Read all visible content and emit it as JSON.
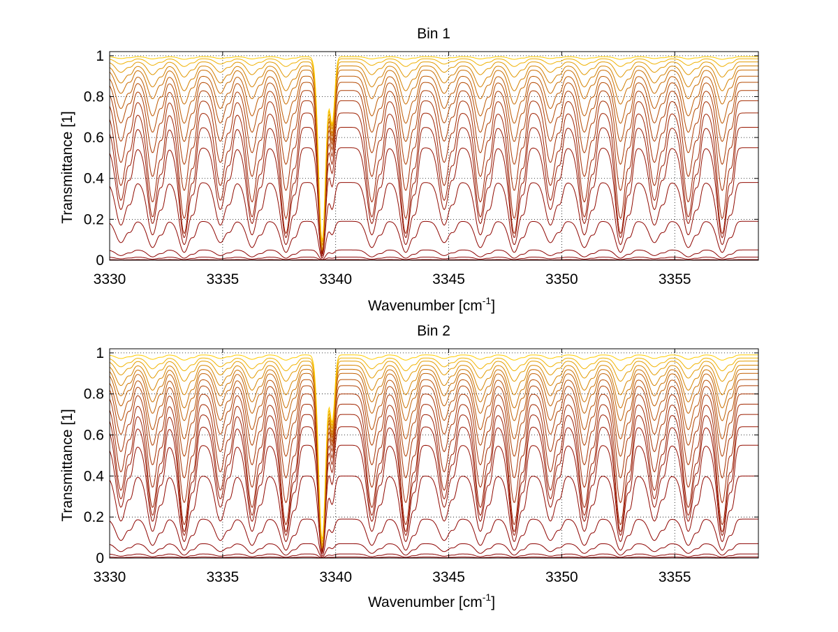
{
  "chart_data": [
    {
      "type": "line",
      "title": "Bin 1",
      "xlabel": "Wavenumber [cm",
      "xlabel_sup": "-1",
      "xlabel_end": "]",
      "ylabel": "Transmittance [1]",
      "xlim": [
        3330,
        3358.7
      ],
      "ylim": [
        0,
        1.02
      ],
      "xticks": [
        3330,
        3335,
        3340,
        3345,
        3350,
        3355
      ],
      "yticks": [
        0,
        0.2,
        0.4,
        0.6,
        0.8,
        1
      ],
      "ytick_labels": [
        "0",
        "0.2",
        "0.4",
        "0.6",
        "0.8",
        "1"
      ],
      "grid": true,
      "line_count": 30,
      "line_color_range": [
        "#8b0000",
        "#ffcc00"
      ],
      "series": [
        {
          "name": "",
          "level": 0.003
        },
        {
          "name": "",
          "level": 0.015
        },
        {
          "name": "",
          "level": 0.05
        },
        {
          "name": "",
          "level": 0.19
        },
        {
          "name": "",
          "level": 0.38
        },
        {
          "name": "",
          "level": 0.55
        },
        {
          "name": "",
          "level": 0.65
        },
        {
          "name": "",
          "level": 0.72
        },
        {
          "name": "",
          "level": 0.78
        },
        {
          "name": "",
          "level": 0.83
        },
        {
          "name": "",
          "level": 0.87
        },
        {
          "name": "",
          "level": 0.9
        },
        {
          "name": "",
          "level": 0.93
        },
        {
          "name": "",
          "level": 0.95
        },
        {
          "name": "",
          "level": 0.97
        },
        {
          "name": "",
          "level": 0.985
        },
        {
          "name": "",
          "level": 0.995
        }
      ],
      "absorption_lines": [
        3330.5,
        3331.9,
        3333.3,
        3334.9,
        3336.3,
        3337.8,
        3339.4,
        3341.6,
        3343.1,
        3344.8,
        3346.4,
        3347.9,
        3349.5,
        3351.0,
        3352.6,
        3354.1,
        3355.6,
        3357.1
      ]
    },
    {
      "type": "line",
      "title": "Bin 2",
      "xlabel": "Wavenumber [cm",
      "xlabel_sup": "-1",
      "xlabel_end": "]",
      "ylabel": "Transmittance [1]",
      "xlim": [
        3330,
        3358.7
      ],
      "ylim": [
        0,
        1.02
      ],
      "xticks": [
        3330,
        3335,
        3340,
        3345,
        3350,
        3355
      ],
      "yticks": [
        0,
        0.2,
        0.4,
        0.6,
        0.8,
        1
      ],
      "ytick_labels": [
        "0",
        "0.2",
        "0.4",
        "0.6",
        "0.8",
        "1"
      ],
      "grid": true,
      "line_count": 30,
      "line_color_range": [
        "#8b0000",
        "#ffcc00"
      ],
      "series": [
        {
          "name": "",
          "level": 0.005
        },
        {
          "name": "",
          "level": 0.02
        },
        {
          "name": "",
          "level": 0.07
        },
        {
          "name": "",
          "level": 0.19
        },
        {
          "name": "",
          "level": 0.4
        },
        {
          "name": "",
          "level": 0.55
        },
        {
          "name": "",
          "level": 0.64
        },
        {
          "name": "",
          "level": 0.7
        },
        {
          "name": "",
          "level": 0.75
        },
        {
          "name": "",
          "level": 0.8
        },
        {
          "name": "",
          "level": 0.84
        },
        {
          "name": "",
          "level": 0.87
        },
        {
          "name": "",
          "level": 0.9
        },
        {
          "name": "",
          "level": 0.92
        },
        {
          "name": "",
          "level": 0.94
        },
        {
          "name": "",
          "level": 0.96
        },
        {
          "name": "",
          "level": 0.975
        },
        {
          "name": "",
          "level": 0.99
        }
      ],
      "absorption_lines": [
        3330.5,
        3331.9,
        3333.3,
        3334.9,
        3336.3,
        3337.8,
        3339.4,
        3341.6,
        3343.1,
        3344.8,
        3346.4,
        3347.9,
        3349.5,
        3351.0,
        3352.6,
        3354.1,
        3355.6,
        3357.1
      ]
    }
  ]
}
